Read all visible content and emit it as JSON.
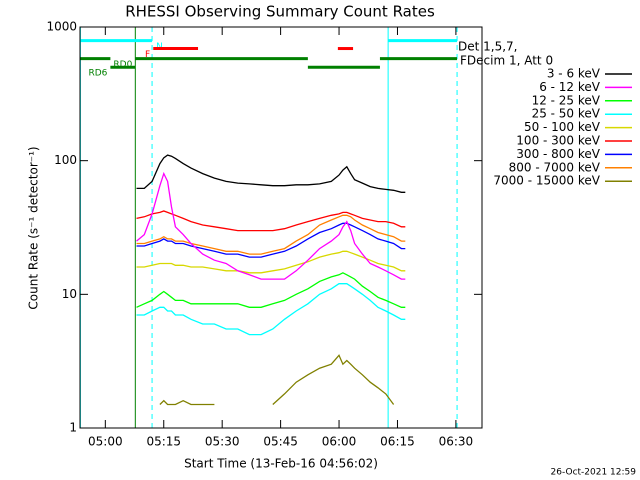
{
  "chart_data": {
    "type": "line",
    "title": "RHESSI Observing Summary Count Rates",
    "xlabel": "Start Time (13-Feb-16 04:56:02)",
    "ylabel": "Count Rate (s⁻¹ detector⁻¹)",
    "log_y": true,
    "xlim": [
      -6.5,
      96.7
    ],
    "ylim": [
      1,
      1000
    ],
    "xticks": [
      {
        "value": 0,
        "label": "05:00"
      },
      {
        "value": 15,
        "label": "05:15"
      },
      {
        "value": 30,
        "label": "05:30"
      },
      {
        "value": 45,
        "label": "05:45"
      },
      {
        "value": 60,
        "label": "06:00"
      },
      {
        "value": 75,
        "label": "06:15"
      },
      {
        "value": 90,
        "label": "06:30"
      }
    ],
    "yticks": [
      1,
      10,
      100,
      1000
    ],
    "legend_header": [
      "Det 1,5,7,",
      "FDecim 1, Att 0"
    ],
    "footer": "26-Oct-2021 12:59",
    "x": [
      8,
      10,
      12,
      14,
      15,
      16,
      17,
      18,
      20,
      22,
      25,
      28,
      31,
      34,
      37,
      40,
      43,
      46,
      49,
      52,
      55,
      58,
      60,
      61,
      62,
      63,
      64,
      66,
      68,
      70,
      72,
      74,
      76,
      77
    ],
    "series": [
      {
        "name": "3 - 6 keV",
        "color": "#000000",
        "values": [
          62,
          62,
          70,
          95,
          105,
          110,
          108,
          104,
          95,
          88,
          80,
          74,
          70,
          68,
          67,
          66,
          65,
          65,
          66,
          66,
          67,
          70,
          78,
          85,
          90,
          80,
          72,
          68,
          64,
          62,
          61,
          60,
          58,
          58
        ]
      },
      {
        "name": "6 - 12 keV",
        "color": "#ff00ff",
        "values": [
          25,
          28,
          40,
          65,
          80,
          70,
          45,
          32,
          28,
          24,
          20,
          18,
          17,
          15,
          14,
          13,
          13,
          13,
          15,
          18,
          22,
          25,
          28,
          32,
          35,
          30,
          24,
          20,
          17,
          16,
          15,
          14,
          13,
          13
        ]
      },
      {
        "name": "12 - 25 keV",
        "color": "#00ff00",
        "values": [
          8,
          8.5,
          9,
          10,
          10.5,
          10,
          9.5,
          9,
          9,
          8.5,
          8.5,
          8.5,
          8.5,
          8.5,
          8,
          8,
          8.5,
          9,
          10,
          11,
          12.5,
          13.5,
          14,
          14.5,
          14,
          13.5,
          13,
          11.5,
          10.5,
          9.5,
          9,
          8.5,
          8,
          8
        ]
      },
      {
        "name": "25 - 50 keV",
        "color": "#00ffff",
        "values": [
          7,
          7,
          7.5,
          8,
          8,
          7.5,
          7.5,
          7,
          7,
          6.5,
          6,
          6,
          5.5,
          5.5,
          5,
          5,
          5.5,
          6.5,
          7.5,
          8.5,
          10,
          11,
          12,
          12,
          12,
          11.5,
          11,
          10,
          9,
          8,
          7.5,
          7,
          6.5,
          6.5
        ]
      },
      {
        "name": "50 - 100 keV",
        "color": "#d8d800",
        "values": [
          16,
          16,
          16.5,
          17,
          17,
          17,
          17,
          16.5,
          16.5,
          16,
          16,
          15.5,
          15,
          15,
          14.5,
          14.5,
          15,
          15.5,
          16.5,
          17.5,
          19,
          20,
          20.5,
          21,
          21,
          20.5,
          20,
          19,
          18,
          17,
          16.5,
          16,
          15,
          15
        ]
      },
      {
        "name": "100 - 300 keV",
        "color": "#ff0000",
        "values": [
          37,
          38,
          40,
          41,
          42,
          41,
          40,
          39,
          37,
          35,
          33,
          32,
          31,
          30,
          30,
          30,
          30,
          31,
          33,
          35,
          37,
          39,
          40,
          41,
          41,
          40,
          39,
          37,
          36,
          35,
          35,
          34,
          32,
          32
        ]
      },
      {
        "name": "300 - 800 keV",
        "color": "#0000ff",
        "values": [
          23,
          23,
          24,
          25,
          26,
          25,
          25,
          24,
          24,
          23,
          22,
          21,
          20,
          20,
          19,
          19,
          20,
          21,
          23,
          26,
          29,
          31,
          33,
          34,
          34,
          33,
          32,
          30,
          28,
          26,
          25,
          24,
          22,
          22
        ]
      },
      {
        "name": "800 - 7000 keV",
        "color": "#ff8000",
        "values": [
          24,
          24,
          25,
          26,
          27,
          26,
          26,
          25,
          25,
          24,
          23,
          22,
          21,
          21,
          20,
          20,
          21,
          22,
          25,
          28,
          33,
          36,
          38,
          39,
          39,
          38,
          36,
          33,
          31,
          29,
          28,
          27,
          25,
          25
        ]
      },
      {
        "name": "7000 - 15000 keV",
        "color": "#808000",
        "values": [
          null,
          null,
          null,
          1.5,
          1.6,
          1.5,
          1.5,
          1.5,
          1.6,
          1.5,
          1.5,
          1.5,
          null,
          null,
          null,
          null,
          1.5,
          1.8,
          2.2,
          2.5,
          2.8,
          3,
          3.5,
          3,
          3.2,
          3,
          2.8,
          2.5,
          2.2,
          2,
          1.8,
          1.5,
          null,
          null
        ]
      }
    ],
    "flags": [
      {
        "label": "N",
        "color": "#00ffff",
        "y": 790,
        "label_at": "end",
        "segments": [
          [
            -6.4,
            12
          ],
          [
            72.6,
            90.3
          ]
        ]
      },
      {
        "label": "F",
        "color": "#ff0000",
        "y": 690,
        "label_at": "start",
        "segments": [
          [
            12.3,
            23.8
          ],
          [
            59.7,
            63.6
          ]
        ]
      },
      {
        "label": "RD0",
        "color": "#008000",
        "y": 580,
        "label_at": "start",
        "segments": [
          [
            7.7,
            52
          ],
          [
            70.5,
            90.3
          ],
          [
            -6.4,
            1.3
          ]
        ]
      },
      {
        "label": "RD6",
        "color": "#008000",
        "y": 500,
        "label_at": "start",
        "segments": [
          [
            1.3,
            7.7
          ],
          [
            52,
            70.5
          ]
        ]
      }
    ],
    "vlines": [
      {
        "x": -6.4,
        "color": "#00ffff",
        "dash": false
      },
      {
        "x": 7.7,
        "color": "#008000",
        "dash": false
      },
      {
        "x": 12,
        "color": "#00ffff",
        "dash": true
      },
      {
        "x": 72.6,
        "color": "#00ffff",
        "dash": false
      },
      {
        "x": 90.3,
        "color": "#00ffff",
        "dash": true
      }
    ]
  }
}
